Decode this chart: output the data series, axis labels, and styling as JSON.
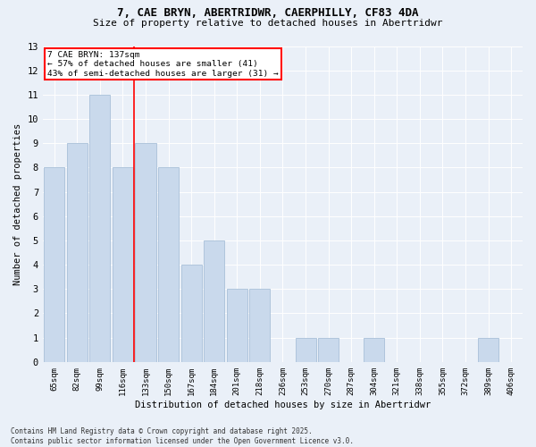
{
  "title_line1": "7, CAE BRYN, ABERTRIDWR, CAERPHILLY, CF83 4DA",
  "title_line2": "Size of property relative to detached houses in Abertridwr",
  "xlabel": "Distribution of detached houses by size in Abertridwr",
  "ylabel": "Number of detached properties",
  "categories": [
    "65sqm",
    "82sqm",
    "99sqm",
    "116sqm",
    "133sqm",
    "150sqm",
    "167sqm",
    "184sqm",
    "201sqm",
    "218sqm",
    "236sqm",
    "253sqm",
    "270sqm",
    "287sqm",
    "304sqm",
    "321sqm",
    "338sqm",
    "355sqm",
    "372sqm",
    "389sqm",
    "406sqm"
  ],
  "values": [
    8,
    9,
    11,
    8,
    9,
    8,
    4,
    5,
    3,
    3,
    0,
    1,
    1,
    0,
    1,
    0,
    0,
    0,
    0,
    1,
    0
  ],
  "bar_color": "#c9d9ec",
  "bar_edge_color": "#a8bfd8",
  "red_line_index": 3.5,
  "annotation_title": "7 CAE BRYN: 137sqm",
  "annotation_line2": "← 57% of detached houses are smaller (41)",
  "annotation_line3": "43% of semi-detached houses are larger (31) →",
  "annotation_box_color": "white",
  "annotation_box_edge": "red",
  "ylim": [
    0,
    13
  ],
  "yticks": [
    0,
    1,
    2,
    3,
    4,
    5,
    6,
    7,
    8,
    9,
    10,
    11,
    12,
    13
  ],
  "footer_line1": "Contains HM Land Registry data © Crown copyright and database right 2025.",
  "footer_line2": "Contains public sector information licensed under the Open Government Licence v3.0.",
  "bg_color": "#eaf0f8"
}
